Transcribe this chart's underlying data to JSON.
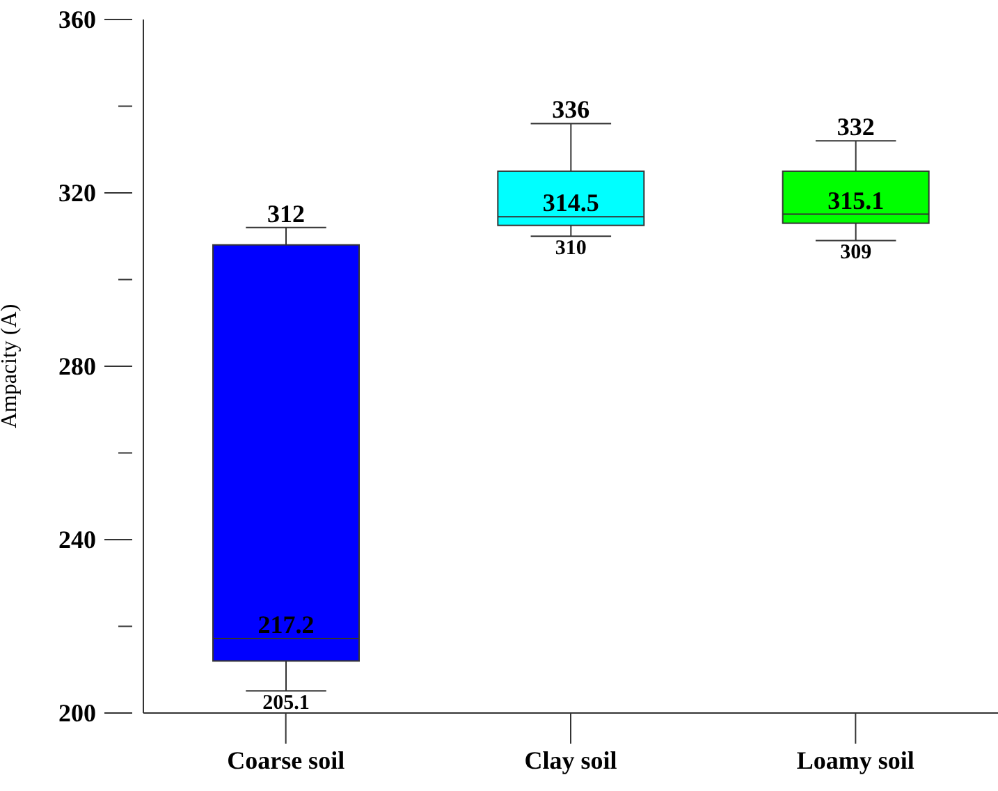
{
  "chart_data": {
    "type": "box",
    "ylabel": "Ampacity (A)",
    "categories": [
      "Coarse soil",
      "Clay soil",
      "Loamy soil"
    ],
    "boxes": [
      {
        "low": 205.1,
        "q1": 212,
        "median": 217.2,
        "q3": 308,
        "high": 312
      },
      {
        "low": 310,
        "q1": 312.5,
        "median": 314.5,
        "q3": 325,
        "high": 336
      },
      {
        "low": 309,
        "q1": 313,
        "median": 315.1,
        "q3": 325,
        "high": 332
      }
    ],
    "colors": [
      "#0000ff",
      "#00ffff",
      "#00ff00"
    ],
    "ylim": [
      200,
      360
    ],
    "yticks": [
      200,
      {
        "value": 220,
        "label": null
      },
      240,
      {
        "value": 260,
        "label": null
      },
      280,
      {
        "value": 300,
        "label": null
      },
      320,
      {
        "value": 340,
        "label": null
      },
      360
    ],
    "annotations": [
      {
        "text": "312",
        "x": "Coarse soil",
        "y": 312
      },
      {
        "text": "217.2",
        "x": "Coarse soil",
        "y": 217.2
      },
      {
        "text": "205.1",
        "x": "Coarse soil",
        "y": 205.1
      },
      {
        "text": "336",
        "x": "Clay soil",
        "y": 336
      },
      {
        "text": "314.5",
        "x": "Clay soil",
        "y": 314.5
      },
      {
        "text": "310",
        "x": "Clay soil",
        "y": 310
      },
      {
        "text": "332",
        "x": "Loamy soil",
        "y": 332
      },
      {
        "text": "315.1",
        "x": "Loamy soil",
        "y": 315.1
      },
      {
        "text": "309",
        "x": "Loamy soil",
        "y": 309
      }
    ],
    "grid": false
  }
}
